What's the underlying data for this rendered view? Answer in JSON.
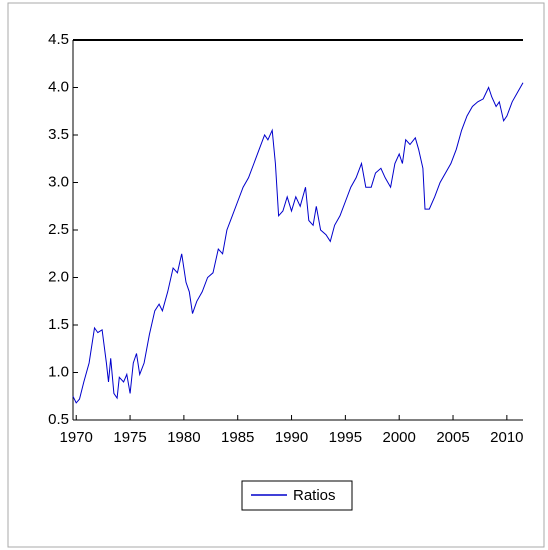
{
  "chart_data": {
    "type": "line",
    "x": [
      1969.7,
      1970.0,
      1970.3,
      1970.7,
      1971.2,
      1971.7,
      1972.0,
      1972.4,
      1972.8,
      1973.0,
      1973.2,
      1973.5,
      1973.8,
      1974.0,
      1974.4,
      1974.7,
      1975.0,
      1975.3,
      1975.6,
      1975.9,
      1976.3,
      1976.8,
      1977.3,
      1977.7,
      1978.0,
      1978.5,
      1979.0,
      1979.4,
      1979.8,
      1980.2,
      1980.5,
      1980.8,
      1981.2,
      1981.7,
      1982.2,
      1982.7,
      1983.2,
      1983.6,
      1984.0,
      1984.5,
      1985.0,
      1985.5,
      1986.0,
      1986.5,
      1987.0,
      1987.5,
      1987.8,
      1988.2,
      1988.5,
      1988.8,
      1989.2,
      1989.6,
      1990.0,
      1990.4,
      1990.8,
      1991.3,
      1991.6,
      1992.0,
      1992.3,
      1992.7,
      1993.2,
      1993.6,
      1994.0,
      1994.5,
      1995.0,
      1995.5,
      1996.0,
      1996.5,
      1996.9,
      1997.4,
      1997.8,
      1998.3,
      1998.7,
      1999.2,
      1999.6,
      2000.0,
      2000.3,
      2000.6,
      2001.0,
      2001.5,
      2001.8,
      2002.2,
      2002.4,
      2002.8,
      2003.3,
      2003.8,
      2004.3,
      2004.8,
      2005.3,
      2005.8,
      2006.3,
      2006.8,
      2007.3,
      2007.8,
      2008.3,
      2008.6,
      2009.0,
      2009.3,
      2009.7,
      2010.0,
      2010.5,
      2011.0,
      2011.5
    ],
    "series": [
      {
        "name": "Ratios",
        "color": "#0000cc",
        "values": [
          0.75,
          0.68,
          0.72,
          0.9,
          1.1,
          1.47,
          1.42,
          1.45,
          1.1,
          0.9,
          1.15,
          0.78,
          0.73,
          0.95,
          0.9,
          0.98,
          0.78,
          1.1,
          1.2,
          0.98,
          1.1,
          1.4,
          1.65,
          1.72,
          1.65,
          1.85,
          2.1,
          2.05,
          2.25,
          1.95,
          1.85,
          1.62,
          1.75,
          1.85,
          2.0,
          2.05,
          2.3,
          2.25,
          2.5,
          2.65,
          2.8,
          2.95,
          3.05,
          3.2,
          3.35,
          3.5,
          3.45,
          3.55,
          3.2,
          2.65,
          2.7,
          2.85,
          2.7,
          2.85,
          2.75,
          2.95,
          2.6,
          2.55,
          2.75,
          2.5,
          2.45,
          2.38,
          2.55,
          2.65,
          2.8,
          2.95,
          3.05,
          3.2,
          2.95,
          2.95,
          3.1,
          3.15,
          3.05,
          2.95,
          3.2,
          3.3,
          3.2,
          3.45,
          3.4,
          3.47,
          3.35,
          3.15,
          2.72,
          2.72,
          2.85,
          3.0,
          3.1,
          3.2,
          3.35,
          3.55,
          3.7,
          3.8,
          3.85,
          3.88,
          4.0,
          3.9,
          3.8,
          3.85,
          3.65,
          3.7,
          3.85,
          3.95,
          4.05
        ]
      }
    ],
    "xlim": [
      1969.7,
      2011.5
    ],
    "xticks": [
      1970,
      1975,
      1980,
      1985,
      1990,
      1995,
      2000,
      2005,
      2010
    ],
    "ylim": [
      0.5,
      4.5
    ],
    "yticks": [
      0.5,
      {
        "value": 1.0,
        "label": "1.0"
      },
      1.5,
      {
        "value": 2.0,
        "label": "2.0"
      },
      2.5,
      {
        "value": 3.0,
        "label": "3.0"
      },
      3.5,
      {
        "value": 4.0,
        "label": "4.0"
      },
      4.5
    ]
  }
}
